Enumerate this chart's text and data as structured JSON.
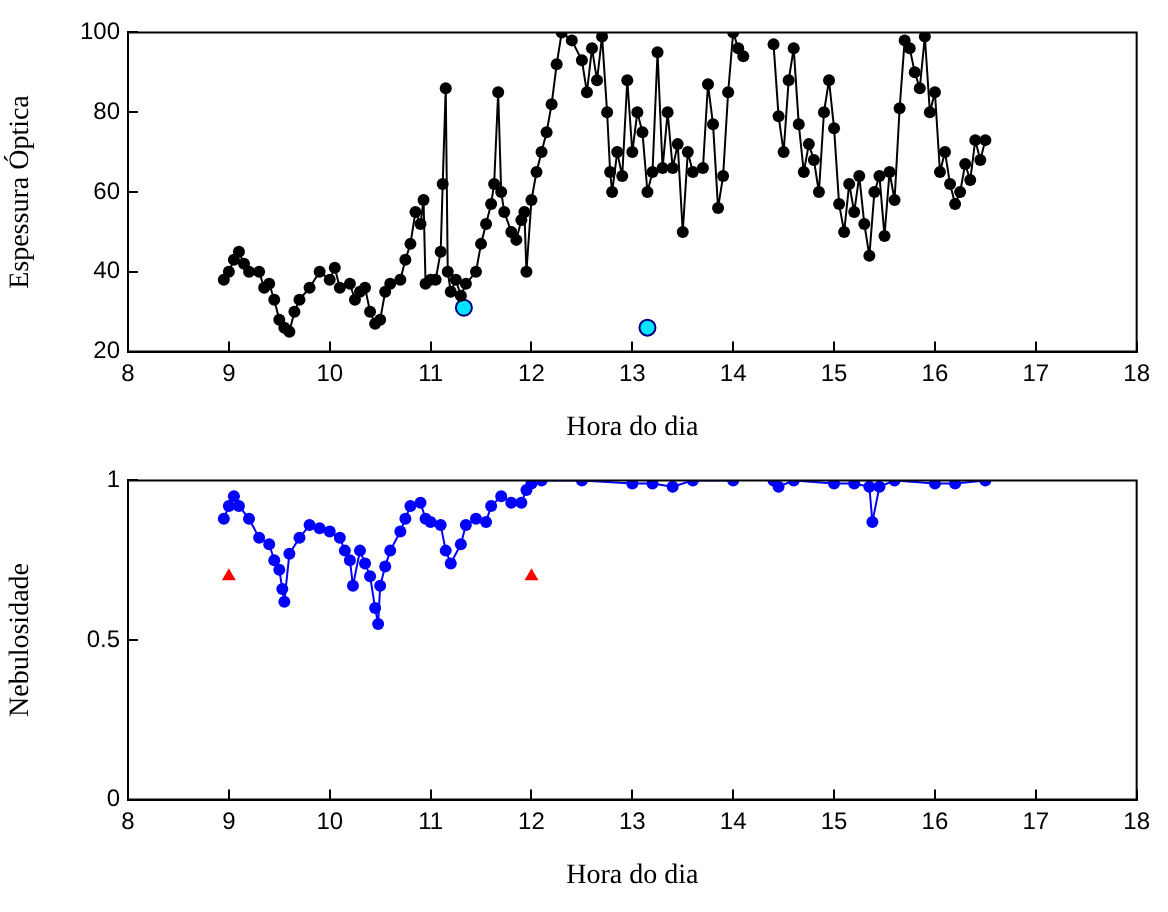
{
  "chart_data": [
    {
      "type": "line",
      "xlabel": "Hora do dia",
      "ylabel": "Espessura Óptica",
      "xlim": [
        8,
        18
      ],
      "xticks": [
        8,
        9,
        10,
        11,
        12,
        13,
        14,
        15,
        16,
        17,
        18
      ],
      "ylim": [
        20,
        100
      ],
      "yticks": [
        20,
        40,
        60,
        80,
        100
      ],
      "grid": false,
      "legend": false,
      "marker": "circle",
      "line_style": "solid",
      "series": [
        {
          "color": "#000000",
          "x": [
            8.95,
            9.0,
            9.05,
            9.1,
            9.15,
            9.2,
            9.3,
            9.35,
            9.4,
            9.45,
            9.5,
            9.55,
            9.6,
            9.65,
            9.7,
            9.8,
            9.9,
            10.0,
            10.05,
            10.1,
            10.2,
            10.25,
            10.3,
            10.35,
            10.4,
            10.45,
            10.5,
            10.55,
            10.6,
            10.7,
            10.75,
            10.8,
            10.85,
            10.9,
            10.93,
            10.95,
            11.0,
            11.05,
            11.1,
            11.12,
            11.15,
            11.17,
            11.2,
            11.25,
            11.3,
            11.35,
            11.45,
            11.5,
            11.55,
            11.6,
            11.63,
            11.67,
            11.7,
            11.73,
            11.8,
            11.85,
            11.9,
            11.93,
            11.95,
            12.0,
            12.05,
            12.1,
            12.15,
            12.2,
            12.25,
            12.3,
            12.4,
            12.5,
            12.55,
            12.6,
            12.65,
            12.7,
            12.75,
            12.78,
            12.8,
            12.85,
            12.9,
            12.95,
            13.0,
            13.05,
            13.1,
            13.15,
            13.2,
            13.25,
            13.3,
            13.35,
            13.4,
            13.45,
            13.5,
            13.55,
            13.6,
            13.7,
            13.75,
            13.8,
            13.85,
            13.9,
            13.95,
            14.0,
            14.05,
            14.1,
            14.25,
            14.4,
            14.45,
            14.5,
            14.55,
            14.6,
            14.65,
            14.7,
            14.75,
            14.8,
            14.85,
            14.9,
            14.95,
            15.0,
            15.05,
            15.1,
            15.15,
            15.2,
            15.25,
            15.3,
            15.35,
            15.4,
            15.45,
            15.5,
            15.55,
            15.6,
            15.65,
            15.7,
            15.75,
            15.8,
            15.85,
            15.9,
            15.95,
            16.0,
            16.05,
            16.1,
            16.15,
            16.2,
            16.25,
            16.3,
            16.35,
            16.4,
            16.45,
            16.5
          ],
          "values": [
            38,
            40,
            43,
            45,
            42,
            40,
            40,
            36,
            37,
            33,
            28,
            26,
            25,
            30,
            33,
            36,
            40,
            38,
            41,
            36,
            37,
            33,
            35,
            36,
            30,
            27,
            28,
            35,
            37,
            38,
            43,
            47,
            55,
            52,
            58,
            37,
            38,
            38,
            45,
            62,
            86,
            40,
            35,
            38,
            34,
            37,
            40,
            47,
            52,
            57,
            62,
            85,
            60,
            55,
            50,
            48,
            53,
            55,
            40,
            58,
            65,
            70,
            75,
            82,
            92,
            100,
            98,
            93,
            85,
            96,
            88,
            99,
            80,
            65,
            60,
            70,
            64,
            88,
            70,
            80,
            75,
            60,
            65,
            95,
            66,
            80,
            66,
            72,
            50,
            70,
            65,
            66,
            87,
            77,
            56,
            64,
            85,
            100,
            96,
            94,
            null,
            97,
            79,
            70,
            88,
            96,
            77,
            65,
            72,
            68,
            60,
            80,
            88,
            76,
            57,
            50,
            62,
            55,
            64,
            52,
            44,
            60,
            64,
            49,
            65,
            58,
            81,
            98,
            96,
            90,
            86,
            99,
            80,
            85,
            65,
            70,
            62,
            57,
            60,
            67,
            63,
            73,
            68,
            73
          ]
        },
        {
          "type": "scatter",
          "color": "#00e5ff",
          "x": [
            11.33,
            13.15
          ],
          "values": [
            31,
            26
          ]
        }
      ]
    },
    {
      "type": "line",
      "xlabel": "Hora do dia",
      "ylabel": "Nebulosidade",
      "xlim": [
        8,
        18
      ],
      "xticks": [
        8,
        9,
        10,
        11,
        12,
        13,
        14,
        15,
        16,
        17,
        18
      ],
      "ylim": [
        0,
        1
      ],
      "yticks": [
        0,
        0.5,
        1
      ],
      "grid": false,
      "legend": false,
      "marker": "circle",
      "line_style": "solid",
      "series": [
        {
          "color": "#0000ff",
          "x": [
            8.95,
            9.0,
            9.05,
            9.1,
            9.2,
            9.3,
            9.4,
            9.45,
            9.5,
            9.53,
            9.55,
            9.6,
            9.7,
            9.8,
            9.9,
            10.0,
            10.1,
            10.15,
            10.2,
            10.23,
            10.3,
            10.35,
            10.4,
            10.45,
            10.48,
            10.5,
            10.55,
            10.6,
            10.7,
            10.75,
            10.8,
            10.9,
            10.95,
            11.0,
            11.1,
            11.15,
            11.2,
            11.3,
            11.35,
            11.45,
            11.55,
            11.6,
            11.7,
            11.8,
            11.9,
            11.95,
            12.0,
            12.1,
            12.5,
            13.0,
            13.2,
            13.4,
            13.6,
            14.0,
            14.2,
            14.4,
            14.45,
            14.6,
            15.0,
            15.2,
            15.35,
            15.38,
            15.45,
            15.6,
            16.0,
            16.2,
            16.5
          ],
          "values": [
            0.88,
            0.92,
            0.95,
            0.92,
            0.88,
            0.82,
            0.8,
            0.75,
            0.72,
            0.66,
            0.62,
            0.77,
            0.82,
            0.86,
            0.85,
            0.84,
            0.82,
            0.78,
            0.75,
            0.67,
            0.78,
            0.74,
            0.7,
            0.6,
            0.55,
            0.67,
            0.73,
            0.78,
            0.84,
            0.88,
            0.92,
            0.93,
            0.88,
            0.87,
            0.86,
            0.78,
            0.74,
            0.8,
            0.86,
            0.88,
            0.87,
            0.92,
            0.95,
            0.93,
            0.93,
            0.97,
            0.99,
            1.0,
            1.0,
            0.99,
            0.99,
            0.98,
            1.0,
            1.0,
            null,
            1.0,
            0.98,
            1.0,
            0.99,
            0.99,
            0.98,
            0.87,
            0.98,
            1.0,
            0.99,
            0.99,
            1.0
          ]
        },
        {
          "type": "scatter",
          "color": "#ff0000",
          "marker": "triangle",
          "x": [
            9,
            12
          ],
          "values": [
            0.7,
            0.7
          ]
        }
      ]
    }
  ]
}
